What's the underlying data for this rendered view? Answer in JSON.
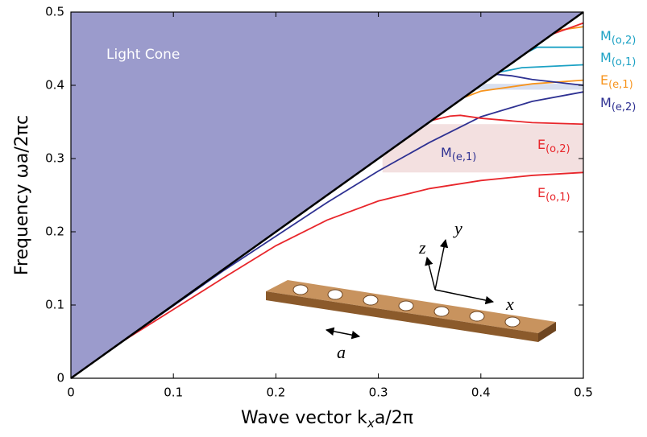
{
  "chart_data": {
    "type": "line",
    "xlabel": {
      "text": "Wave vector  k",
      "sub": "x",
      "rest": "a/2π"
    },
    "ylabel": "Frequency  ωa/2πc",
    "xlim": [
      0,
      0.5
    ],
    "ylim": [
      0,
      0.5
    ],
    "xticks": [
      0,
      0.1,
      0.2,
      0.3,
      0.4,
      0.5
    ],
    "yticks": [
      0,
      0.1,
      0.2,
      0.3,
      0.4,
      0.5
    ],
    "light_cone": {
      "label": "Light Cone",
      "x": [
        0,
        0.5
      ],
      "values": [
        0,
        0.5
      ],
      "color": "#9b9bcc"
    },
    "bands": [
      {
        "x": [
          0.304,
          0.5
        ],
        "y": [
          0.281,
          0.347
        ],
        "color": "#f3e0e0"
      },
      {
        "x": [
          0.385,
          0.5
        ],
        "y": [
          0.394,
          0.402
        ],
        "color": "#d8dff0"
      }
    ],
    "series": [
      {
        "name": "E",
        "sub": "(o,1)",
        "color": "#e8262b",
        "x": [
          0,
          0.05,
          0.1,
          0.15,
          0.2,
          0.25,
          0.3,
          0.35,
          0.4,
          0.45,
          0.5
        ],
        "values": [
          0,
          0.05,
          0.094,
          0.138,
          0.181,
          0.216,
          0.242,
          0.259,
          0.27,
          0.277,
          0.281
        ]
      },
      {
        "name": "M",
        "sub": "(e,1)",
        "color": "#2e3192",
        "x": [
          0,
          0.05,
          0.1,
          0.15,
          0.2,
          0.25,
          0.3,
          0.35,
          0.4,
          0.45,
          0.5
        ],
        "values": [
          0,
          0.05,
          0.099,
          0.148,
          0.194,
          0.24,
          0.283,
          0.322,
          0.357,
          0.378,
          0.391
        ]
      },
      {
        "name": "E",
        "sub": "(o,2)",
        "color": "#e8262b",
        "x": [
          0.352,
          0.37,
          0.38,
          0.4,
          0.45,
          0.5
        ],
        "values": [
          0.352,
          0.358,
          0.359,
          0.355,
          0.349,
          0.347
        ]
      },
      {
        "name": "E",
        "sub": "(e,1)",
        "color": "#f7941d",
        "x": [
          0.383,
          0.4,
          0.45,
          0.5
        ],
        "values": [
          0.383,
          0.392,
          0.402,
          0.407
        ]
      },
      {
        "name": "M",
        "sub": "(e,2)",
        "color": "#2e3192",
        "x": [
          0.415,
          0.43,
          0.45,
          0.5
        ],
        "values": [
          0.415,
          0.413,
          0.408,
          0.4
        ]
      },
      {
        "name": "M",
        "sub": "(o,1)",
        "color": "#1ba1c4",
        "x": [
          0.418,
          0.44,
          0.5
        ],
        "values": [
          0.418,
          0.424,
          0.428
        ]
      },
      {
        "name": "M",
        "sub": "(o,2)",
        "color": "#1ba1c4",
        "x": [
          0.445,
          0.455,
          0.5
        ],
        "values": [
          0.445,
          0.452,
          0.452
        ]
      },
      {
        "color": "#f7941d",
        "x": [
          0.475,
          0.5
        ],
        "values": [
          0.475,
          0.48
        ]
      },
      {
        "color": "#e8262b",
        "x": [
          0.47,
          0.5
        ],
        "values": [
          0.47,
          0.485
        ]
      }
    ],
    "inset": {
      "x": "x",
      "y": "y",
      "z": "z",
      "a": "a"
    }
  }
}
